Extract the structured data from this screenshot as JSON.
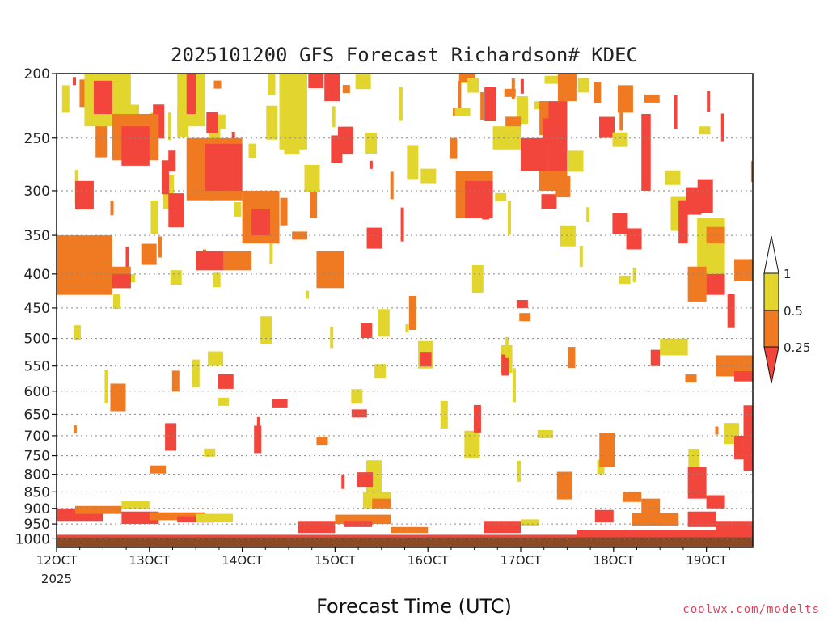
{
  "chart_data": {
    "type": "heatmap",
    "title": "2025101200 GFS Forecast Richardson# KDEC",
    "xlabel": "Forecast Time (UTC)",
    "ylabel": "",
    "x_start_label": "12OCT",
    "x_year": "2025",
    "x_ticks": [
      "12OCT",
      "13OCT",
      "14OCT",
      "15OCT",
      "16OCT",
      "17OCT",
      "18OCT",
      "19OCT"
    ],
    "xlim": [
      12.0,
      19.5
    ],
    "y_ticks": [
      200,
      250,
      300,
      350,
      400,
      450,
      500,
      550,
      600,
      650,
      700,
      750,
      800,
      850,
      900,
      950,
      1000
    ],
    "ylim": [
      200,
      1030
    ],
    "y_scale": "log",
    "grid": "dotted horizontal at pressure levels",
    "legend": {
      "placement": "right",
      "labels": [
        "1",
        "0.5",
        "0.25"
      ],
      "colors": [
        "#ffffff",
        "#e2d52e",
        "#ef7a22",
        "#f2453b"
      ]
    },
    "color_classes": {
      "gt_1": "#ffffff",
      "0.5-1": "#e2d52e",
      "0.25-0.5": "#ef7a22",
      "lt_0.25": "#f2453b"
    },
    "ground_color": "#8b4a23",
    "patches": [
      {
        "x0": 12.0,
        "x1": 12.6,
        "p0": 350,
        "p1": 430,
        "class": "0.25-0.5"
      },
      {
        "x0": 12.2,
        "x1": 12.4,
        "p0": 290,
        "p1": 320,
        "class": "lt_0.25"
      },
      {
        "x0": 12.3,
        "x1": 12.8,
        "p0": 200,
        "p1": 240,
        "class": "0.5-1"
      },
      {
        "x0": 12.4,
        "x1": 12.6,
        "p0": 205,
        "p1": 230,
        "class": "lt_0.25"
      },
      {
        "x0": 12.6,
        "x1": 13.1,
        "p0": 230,
        "p1": 270,
        "class": "0.25-0.5"
      },
      {
        "x0": 12.7,
        "x1": 13.0,
        "p0": 240,
        "p1": 275,
        "class": "lt_0.25"
      },
      {
        "x0": 12.5,
        "x1": 12.8,
        "p0": 390,
        "p1": 420,
        "class": "0.25-0.5"
      },
      {
        "x0": 12.6,
        "x1": 12.8,
        "p0": 400,
        "p1": 420,
        "class": "lt_0.25"
      },
      {
        "x0": 13.3,
        "x1": 13.6,
        "p0": 200,
        "p1": 240,
        "class": "0.5-1"
      },
      {
        "x0": 13.4,
        "x1": 13.5,
        "p0": 200,
        "p1": 230,
        "class": "lt_0.25"
      },
      {
        "x0": 13.4,
        "x1": 14.0,
        "p0": 250,
        "p1": 310,
        "class": "0.25-0.5"
      },
      {
        "x0": 13.6,
        "x1": 14.0,
        "p0": 255,
        "p1": 300,
        "class": "lt_0.25"
      },
      {
        "x0": 13.5,
        "x1": 13.8,
        "p0": 370,
        "p1": 395,
        "class": "lt_0.25"
      },
      {
        "x0": 13.8,
        "x1": 14.1,
        "p0": 370,
        "p1": 395,
        "class": "0.25-0.5"
      },
      {
        "x0": 14.0,
        "x1": 14.4,
        "p0": 300,
        "p1": 360,
        "class": "0.25-0.5"
      },
      {
        "x0": 14.1,
        "x1": 14.3,
        "p0": 320,
        "p1": 350,
        "class": "lt_0.25"
      },
      {
        "x0": 14.4,
        "x1": 14.7,
        "p0": 180,
        "p1": 260,
        "class": "0.5-1"
      },
      {
        "x0": 14.8,
        "x1": 15.1,
        "p0": 370,
        "p1": 420,
        "class": "0.25-0.5"
      },
      {
        "x0": 15.3,
        "x1": 15.6,
        "p0": 850,
        "p1": 900,
        "class": "0.5-1"
      },
      {
        "x0": 15.4,
        "x1": 15.6,
        "p0": 870,
        "p1": 900,
        "class": "0.25-0.5"
      },
      {
        "x0": 16.3,
        "x1": 16.7,
        "p0": 280,
        "p1": 330,
        "class": "0.25-0.5"
      },
      {
        "x0": 16.4,
        "x1": 16.7,
        "p0": 290,
        "p1": 330,
        "class": "lt_0.25"
      },
      {
        "x0": 16.7,
        "x1": 17.0,
        "p0": 240,
        "p1": 260,
        "class": "0.5-1"
      },
      {
        "x0": 17.0,
        "x1": 17.3,
        "p0": 250,
        "p1": 280,
        "class": "lt_0.25"
      },
      {
        "x0": 17.3,
        "x1": 17.5,
        "p0": 220,
        "p1": 280,
        "class": "lt_0.25"
      },
      {
        "x0": 17.2,
        "x1": 17.5,
        "p0": 280,
        "p1": 300,
        "class": "0.25-0.5"
      },
      {
        "x0": 17.4,
        "x1": 17.6,
        "p0": 200,
        "p1": 220,
        "class": "0.25-0.5"
      },
      {
        "x0": 18.3,
        "x1": 18.4,
        "p0": 230,
        "p1": 300,
        "class": "lt_0.25"
      },
      {
        "x0": 18.7,
        "x1": 18.8,
        "p0": 310,
        "p1": 360,
        "class": "lt_0.25"
      },
      {
        "x0": 18.9,
        "x1": 19.2,
        "p0": 330,
        "p1": 400,
        "class": "0.5-1"
      },
      {
        "x0": 19.0,
        "x1": 19.2,
        "p0": 340,
        "p1": 360,
        "class": "0.25-0.5"
      },
      {
        "x0": 18.8,
        "x1": 19.0,
        "p0": 390,
        "p1": 440,
        "class": "0.25-0.5"
      },
      {
        "x0": 19.0,
        "x1": 19.2,
        "p0": 400,
        "p1": 430,
        "class": "lt_0.25"
      },
      {
        "x0": 19.3,
        "x1": 19.5,
        "p0": 380,
        "p1": 410,
        "class": "0.25-0.5"
      },
      {
        "x0": 19.1,
        "x1": 19.5,
        "p0": 530,
        "p1": 570,
        "class": "0.25-0.5"
      },
      {
        "x0": 19.3,
        "x1": 19.5,
        "p0": 560,
        "p1": 580,
        "class": "lt_0.25"
      },
      {
        "x0": 18.5,
        "x1": 18.8,
        "p0": 500,
        "p1": 530,
        "class": "0.5-1"
      },
      {
        "x0": 18.4,
        "x1": 18.5,
        "p0": 520,
        "p1": 550,
        "class": "lt_0.25"
      },
      {
        "x0": 18.8,
        "x1": 19.0,
        "p0": 780,
        "p1": 870,
        "class": "lt_0.25"
      },
      {
        "x0": 19.0,
        "x1": 19.2,
        "p0": 860,
        "p1": 900,
        "class": "lt_0.25"
      },
      {
        "x0": 19.4,
        "x1": 19.5,
        "p0": 630,
        "p1": 790,
        "class": "lt_0.25"
      },
      {
        "x0": 19.3,
        "x1": 19.4,
        "p0": 700,
        "p1": 760,
        "class": "lt_0.25"
      },
      {
        "x0": 18.1,
        "x1": 18.3,
        "p0": 850,
        "p1": 880,
        "class": "0.25-0.5"
      },
      {
        "x0": 18.3,
        "x1": 18.5,
        "p0": 870,
        "p1": 940,
        "class": "0.25-0.5"
      }
    ],
    "low_level_bands": [
      {
        "x0": 12.0,
        "x1": 12.5,
        "p": 920,
        "dp": 40,
        "class": "lt_0.25"
      },
      {
        "x0": 12.2,
        "x1": 12.7,
        "p": 905,
        "dp": 25,
        "class": "0.25-0.5"
      },
      {
        "x0": 12.7,
        "x1": 13.0,
        "p": 890,
        "dp": 25,
        "class": "0.5-1"
      },
      {
        "x0": 12.7,
        "x1": 13.1,
        "p": 930,
        "dp": 40,
        "class": "lt_0.25"
      },
      {
        "x0": 13.0,
        "x1": 13.6,
        "p": 925,
        "dp": 25,
        "class": "0.25-0.5"
      },
      {
        "x0": 13.3,
        "x1": 13.7,
        "p": 935,
        "dp": 20,
        "class": "lt_0.25"
      },
      {
        "x0": 13.5,
        "x1": 13.9,
        "p": 930,
        "dp": 25,
        "class": "0.5-1"
      },
      {
        "x0": 14.6,
        "x1": 15.0,
        "p": 960,
        "dp": 40,
        "class": "lt_0.25"
      },
      {
        "x0": 15.0,
        "x1": 15.6,
        "p": 935,
        "dp": 30,
        "class": "0.25-0.5"
      },
      {
        "x0": 15.1,
        "x1": 15.4,
        "p": 950,
        "dp": 20,
        "class": "lt_0.25"
      },
      {
        "x0": 15.6,
        "x1": 16.0,
        "p": 970,
        "dp": 20,
        "class": "0.25-0.5"
      },
      {
        "x0": 16.6,
        "x1": 17.0,
        "p": 960,
        "dp": 40,
        "class": "lt_0.25"
      },
      {
        "x0": 17.0,
        "x1": 17.2,
        "p": 945,
        "dp": 20,
        "class": "0.5-1"
      },
      {
        "x0": 17.6,
        "x1": 19.5,
        "p": 985,
        "dp": 30,
        "class": "lt_0.25"
      },
      {
        "x0": 17.8,
        "x1": 18.0,
        "p": 925,
        "dp": 40,
        "class": "lt_0.25"
      },
      {
        "x0": 18.2,
        "x1": 18.7,
        "p": 935,
        "dp": 40,
        "class": "0.25-0.5"
      },
      {
        "x0": 18.8,
        "x1": 19.1,
        "p": 935,
        "dp": 50,
        "class": "lt_0.25"
      },
      {
        "x0": 19.1,
        "x1": 19.5,
        "p": 960,
        "dp": 40,
        "class": "lt_0.25"
      }
    ],
    "scatter_cells": {
      "seed": 20251012,
      "count": 170,
      "xlim": [
        12.0,
        19.5
      ],
      "plim": [
        200,
        820
      ],
      "weights": {
        "0.5-1": 0.5,
        "0.25-0.5": 0.25,
        "lt_0.25": 0.25
      }
    }
  },
  "watermark": "coolwx.com/modelts"
}
